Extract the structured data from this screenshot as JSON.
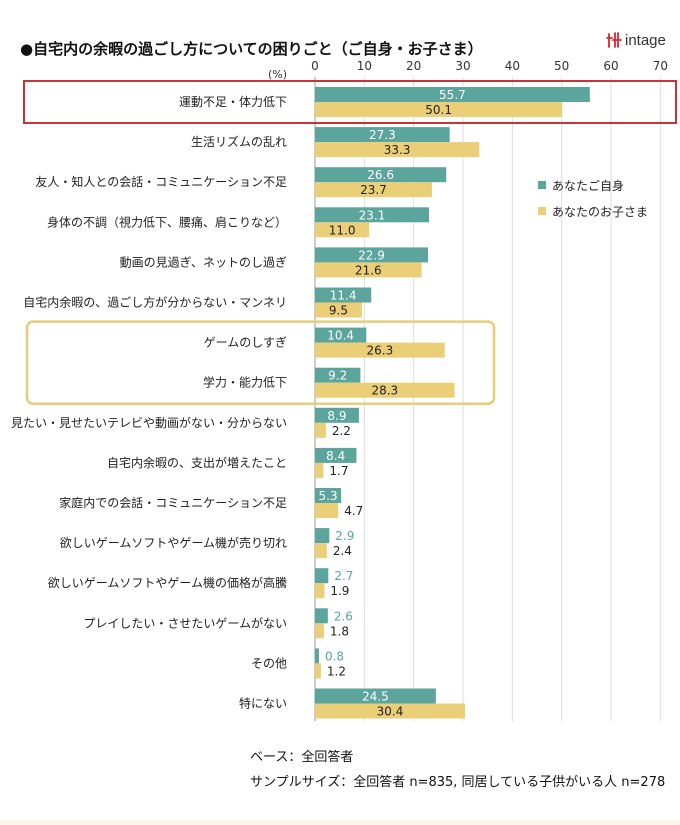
{
  "title": "●自宅内の余暇の過ごし方についての困りごと（ご自身・お子さま）",
  "logo": {
    "text": "intage",
    "icon": "intage-logo-icon"
  },
  "notes": {
    "base": "ベース：全回答者",
    "sample": "サンプルサイズ：全回答者 n=835, 同居している子供がいる人 n=278"
  },
  "colors": {
    "self": "#5ba59d",
    "child": "#ebce78",
    "highlight_red": "#c8333a",
    "highlight_yellow": "#e6cd77",
    "grid": "#dddddd",
    "axis": "#999999"
  },
  "chart_data": {
    "type": "bar",
    "orientation": "horizontal",
    "unit_label": "(%)",
    "xlim": [
      0,
      70
    ],
    "xticks": [
      0,
      10,
      20,
      30,
      40,
      50,
      60,
      70
    ],
    "grid": true,
    "legend_position": "right",
    "categories": [
      "運動不足・体力低下",
      "生活リズムの乱れ",
      "友人・知人との会話・コミュニケーション不足",
      "身体の不調（視力低下、腰痛、肩こりなど）",
      "動画の見過ぎ、ネットのし過ぎ",
      "自宅内余暇の、過ごし方が分からない・マンネリ",
      "ゲームのしすぎ",
      "学力・能力低下",
      "見たい・見せたいテレビや動画がない・分からない",
      "自宅内余暇の、支出が増えたこと",
      "家庭内での会話・コミュニケーション不足",
      "欲しいゲームソフトやゲーム機が売り切れ",
      "欲しいゲームソフトやゲーム機の価格が高騰",
      "プレイしたい・させたいゲームがない",
      "その他",
      "特にない"
    ],
    "series": [
      {
        "name": "あなたご自身",
        "values": [
          55.7,
          27.3,
          26.6,
          23.1,
          22.9,
          11.4,
          10.4,
          9.2,
          8.9,
          8.4,
          5.3,
          2.9,
          2.7,
          2.6,
          0.8,
          24.5
        ]
      },
      {
        "name": "あなたのお子さま",
        "values": [
          50.1,
          33.3,
          23.7,
          11.0,
          21.6,
          9.5,
          26.3,
          28.3,
          2.2,
          1.7,
          4.7,
          2.4,
          1.9,
          1.8,
          1.2,
          30.4
        ]
      }
    ],
    "highlights": [
      {
        "style": "red",
        "categories": [
          0
        ]
      },
      {
        "style": "yellow",
        "categories": [
          6,
          7
        ]
      }
    ]
  }
}
